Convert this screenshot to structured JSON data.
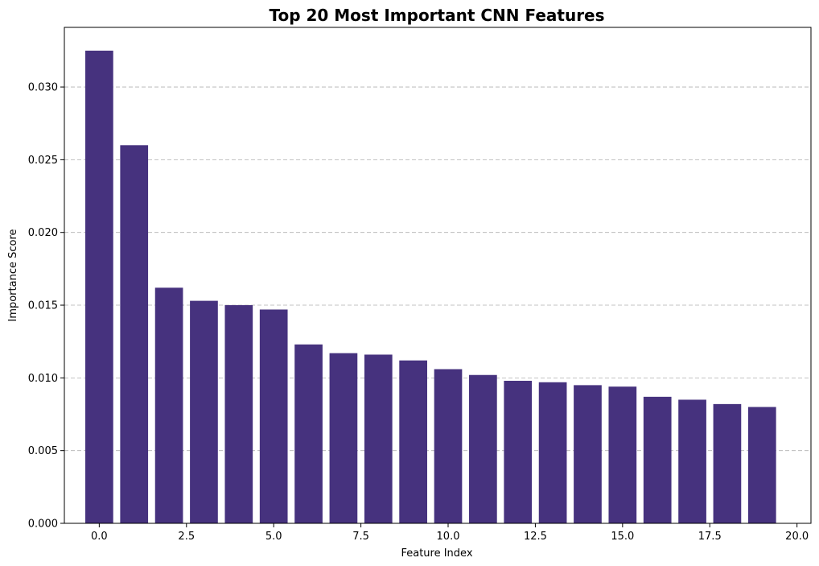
{
  "chart_data": {
    "type": "bar",
    "title": "Top 20 Most Important CNN Features",
    "xlabel": "Feature Index",
    "ylabel": "Importance Score",
    "x": [
      0,
      1,
      2,
      3,
      4,
      5,
      6,
      7,
      8,
      9,
      10,
      11,
      12,
      13,
      14,
      15,
      16,
      17,
      18,
      19
    ],
    "values": [
      0.0325,
      0.026,
      0.0162,
      0.0153,
      0.015,
      0.0147,
      0.0123,
      0.0117,
      0.0116,
      0.0112,
      0.0106,
      0.0102,
      0.0098,
      0.0097,
      0.0095,
      0.0094,
      0.0087,
      0.0085,
      0.0082,
      0.008
    ],
    "bar_width": 0.8,
    "xlim": [
      -1.0,
      20.4
    ],
    "ylim": [
      0,
      0.0341
    ],
    "xticks": [
      0.0,
      2.5,
      5.0,
      7.5,
      10.0,
      12.5,
      15.0,
      17.5,
      20.0
    ],
    "xtick_labels": [
      "0.0",
      "2.5",
      "5.0",
      "7.5",
      "10.0",
      "12.5",
      "15.0",
      "17.5",
      "20.0"
    ],
    "yticks": [
      0.0,
      0.005,
      0.01,
      0.015,
      0.02,
      0.025,
      0.03
    ],
    "ytick_labels": [
      "0.000",
      "0.005",
      "0.010",
      "0.015",
      "0.020",
      "0.025",
      "0.030"
    ],
    "grid": "y-dashed",
    "bar_color": "#46327e"
  }
}
